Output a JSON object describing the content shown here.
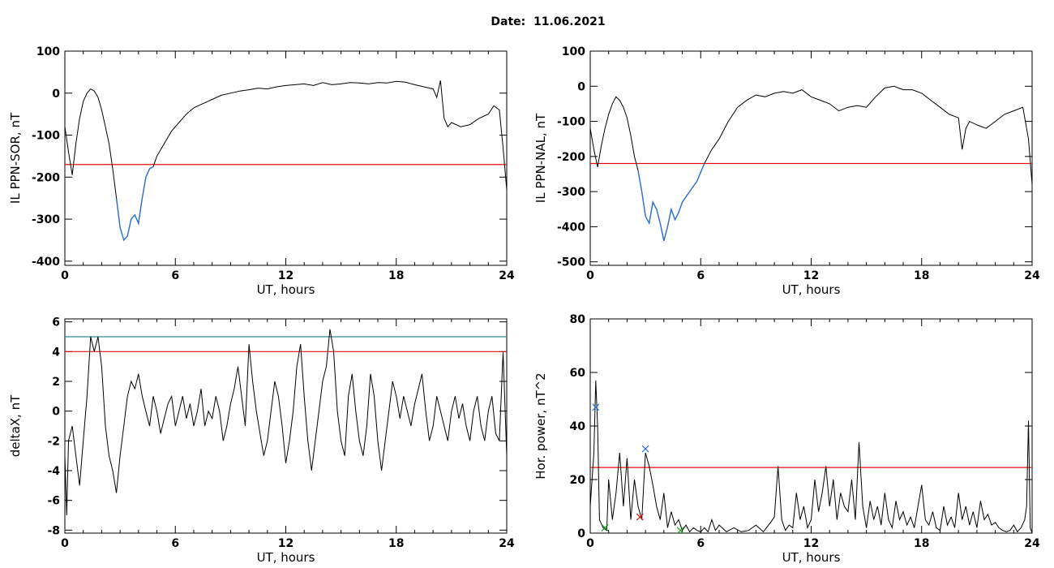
{
  "header": {
    "date_label": "Date:",
    "date_value": "11.06.2021"
  },
  "colors": {
    "trace": "#000000",
    "threshold": "#e01010",
    "highlight": "#2b6fd6",
    "teal": "#2a8a9a",
    "green": "#1ea01e"
  },
  "chart_data": [
    {
      "id": "ppn-sor",
      "type": "line",
      "xlabel": "UT, hours",
      "ylabel": "IL PPN-SOR, nT",
      "xlim": [
        0,
        24
      ],
      "ylim": [
        -410,
        100
      ],
      "xticks": [
        0,
        6,
        12,
        18,
        24
      ],
      "yticks": [
        100,
        0,
        -100,
        -200,
        -300,
        -400
      ],
      "threshold": -170,
      "series": [
        {
          "x": [
            0,
            0.2,
            0.4,
            0.6,
            0.8,
            1.0,
            1.2,
            1.4,
            1.6,
            1.8,
            2.0,
            2.2,
            2.4,
            2.6,
            2.8,
            3.0,
            3.2,
            3.4,
            3.6,
            3.8,
            4.0,
            4.2,
            4.4,
            4.6,
            4.8,
            5.0,
            5.4,
            5.8,
            6.2,
            6.6,
            7.0,
            7.5,
            8.0,
            8.5,
            9.0,
            9.5,
            10.0,
            10.5,
            11.0,
            11.5,
            12.0,
            12.5,
            13.0,
            13.5,
            14.0,
            14.5,
            15.0,
            15.5,
            16.0,
            16.5,
            17.0,
            17.5,
            18.0,
            18.5,
            19.0,
            19.5,
            20.0,
            20.2,
            20.4,
            20.6,
            20.8,
            21.0,
            21.5,
            22.0,
            22.5,
            23.0,
            23.3,
            23.6,
            23.8,
            24.0
          ],
          "y": [
            -80,
            -140,
            -195,
            -120,
            -60,
            -20,
            0,
            10,
            5,
            -10,
            -40,
            -80,
            -120,
            -180,
            -250,
            -320,
            -350,
            -340,
            -300,
            -290,
            -310,
            -250,
            -200,
            -180,
            -175,
            -150,
            -120,
            -90,
            -70,
            -50,
            -35,
            -25,
            -15,
            -5,
            0,
            5,
            8,
            12,
            10,
            15,
            18,
            20,
            22,
            18,
            25,
            20,
            22,
            25,
            24,
            22,
            25,
            24,
            28,
            26,
            20,
            15,
            10,
            -10,
            30,
            -60,
            -80,
            -70,
            -80,
            -75,
            -60,
            -50,
            -30,
            -40,
            -130,
            -230
          ]
        }
      ],
      "highlight": {
        "from": 2.7,
        "to": 4.8
      }
    },
    {
      "id": "ppn-nal",
      "type": "line",
      "xlabel": "UT, hours",
      "ylabel": "IL PPN-NAL, nT",
      "xlim": [
        0,
        24
      ],
      "ylim": [
        -510,
        100
      ],
      "xticks": [
        0,
        6,
        12,
        18,
        24
      ],
      "yticks": [
        100,
        0,
        -100,
        -200,
        -300,
        -400,
        -500
      ],
      "threshold": -220,
      "series": [
        {
          "x": [
            0,
            0.2,
            0.4,
            0.6,
            0.8,
            1.0,
            1.2,
            1.4,
            1.6,
            1.8,
            2.0,
            2.2,
            2.4,
            2.6,
            2.8,
            3.0,
            3.2,
            3.4,
            3.6,
            3.8,
            4.0,
            4.2,
            4.4,
            4.6,
            4.8,
            5.0,
            5.4,
            5.8,
            6.2,
            6.6,
            7.0,
            7.5,
            8.0,
            8.5,
            9.0,
            9.5,
            10.0,
            10.5,
            11.0,
            11.5,
            12.0,
            12.5,
            13.0,
            13.5,
            14.0,
            14.5,
            15.0,
            15.5,
            16.0,
            16.5,
            17.0,
            17.5,
            18.0,
            18.5,
            19.0,
            19.5,
            20.0,
            20.2,
            20.4,
            20.6,
            21.0,
            21.5,
            22.0,
            22.5,
            23.0,
            23.5,
            23.8,
            24.0
          ],
          "y": [
            -120,
            -180,
            -230,
            -170,
            -120,
            -80,
            -50,
            -30,
            -40,
            -60,
            -90,
            -140,
            -200,
            -240,
            -300,
            -370,
            -390,
            -330,
            -350,
            -390,
            -440,
            -400,
            -350,
            -380,
            -360,
            -330,
            -300,
            -270,
            -220,
            -180,
            -150,
            -100,
            -60,
            -40,
            -25,
            -30,
            -20,
            -15,
            -20,
            -10,
            -30,
            -40,
            -50,
            -70,
            -60,
            -55,
            -60,
            -30,
            -5,
            0,
            -10,
            -10,
            -20,
            -40,
            -60,
            -80,
            -90,
            -180,
            -120,
            -100,
            -110,
            -120,
            -100,
            -80,
            -70,
            -60,
            -150,
            -280
          ]
        }
      ],
      "highlight": {
        "from": 2.6,
        "to": 6.4
      }
    },
    {
      "id": "deltax",
      "type": "line",
      "xlabel": "UT, hours",
      "ylabel": "deltaX, nT",
      "xlim": [
        0,
        24
      ],
      "ylim": [
        -8.2,
        6.2
      ],
      "xticks": [
        0,
        6,
        12,
        18,
        24
      ],
      "yticks": [
        6,
        4,
        2,
        0,
        -2,
        -4,
        -6,
        -8
      ],
      "threshold": 4,
      "threshold2": 5,
      "series": [
        {
          "x": [
            0,
            0.1,
            0.2,
            0.4,
            0.6,
            0.8,
            1.0,
            1.2,
            1.4,
            1.6,
            1.8,
            2.0,
            2.2,
            2.4,
            2.6,
            2.8,
            3.0,
            3.2,
            3.4,
            3.6,
            3.8,
            4.0,
            4.2,
            4.4,
            4.6,
            4.8,
            5.0,
            5.2,
            5.4,
            5.6,
            5.8,
            6.0,
            6.2,
            6.4,
            6.6,
            6.8,
            7.0,
            7.2,
            7.4,
            7.6,
            7.8,
            8.0,
            8.2,
            8.4,
            8.6,
            8.8,
            9.0,
            9.2,
            9.4,
            9.6,
            9.8,
            10.0,
            10.2,
            10.4,
            10.6,
            10.8,
            11.0,
            11.2,
            11.4,
            11.6,
            11.8,
            12.0,
            12.2,
            12.4,
            12.6,
            12.8,
            13.0,
            13.2,
            13.4,
            13.6,
            13.8,
            14.0,
            14.2,
            14.4,
            14.6,
            14.8,
            15.0,
            15.2,
            15.4,
            15.6,
            15.8,
            16.0,
            16.2,
            16.4,
            16.6,
            16.8,
            17.0,
            17.2,
            17.4,
            17.6,
            17.8,
            18.0,
            18.2,
            18.4,
            18.6,
            18.8,
            19.0,
            19.2,
            19.4,
            19.6,
            19.8,
            20.0,
            20.2,
            20.4,
            20.6,
            20.8,
            21.0,
            21.2,
            21.4,
            21.6,
            21.8,
            22.0,
            22.2,
            22.4,
            22.6,
            22.8,
            23.0,
            23.2,
            23.4,
            23.6,
            23.8,
            24.0
          ],
          "y": [
            -3,
            -7,
            -2,
            -1,
            -3,
            -5,
            -2,
            1,
            5,
            4,
            5,
            3,
            -1,
            -3,
            -4,
            -5.5,
            -3,
            -1,
            1,
            2,
            1.5,
            2.5,
            1,
            0,
            -1,
            1,
            0,
            -1.5,
            -0.5,
            0.5,
            1,
            -1,
            0,
            1,
            -0.5,
            0.5,
            -1,
            0,
            1.5,
            -1,
            0,
            -0.5,
            1,
            0,
            -2,
            -1,
            0.5,
            1.5,
            3,
            1,
            -1,
            4.5,
            2,
            0,
            -1.5,
            -3,
            -2,
            0,
            2,
            1,
            -1,
            -3.5,
            -2,
            0,
            3,
            4.5,
            1,
            -2,
            -4,
            -2,
            0,
            2,
            3,
            5.5,
            4,
            0,
            -2,
            -3,
            1,
            2.5,
            0,
            -2,
            -3,
            -1,
            2.5,
            1,
            -2,
            -4,
            -2,
            0,
            2,
            1,
            -0.5,
            1,
            0,
            -1,
            0.5,
            1.5,
            2.5,
            0,
            -2,
            -1,
            1,
            0,
            -1,
            -2,
            0,
            1,
            -0.5,
            0.5,
            -1,
            -2,
            0,
            1,
            -1,
            -2,
            0,
            1,
            -1.5,
            -2,
            4,
            -3
          ]
        }
      ]
    },
    {
      "id": "hor-power",
      "type": "line",
      "xlabel": "UT, hours",
      "ylabel": "Hor. power, nT^2",
      "xlim": [
        0,
        24
      ],
      "ylim": [
        0,
        80
      ],
      "xticks": [
        0,
        6,
        12,
        18,
        24
      ],
      "yticks": [
        80,
        60,
        40,
        20,
        0
      ],
      "threshold": 24.5,
      "series": [
        {
          "x": [
            0,
            0.2,
            0.3,
            0.4,
            0.5,
            0.7,
            0.9,
            1.0,
            1.2,
            1.4,
            1.6,
            1.8,
            2.0,
            2.2,
            2.4,
            2.6,
            2.8,
            3.0,
            3.2,
            3.4,
            3.6,
            3.8,
            4.0,
            4.2,
            4.4,
            4.6,
            4.8,
            5.0,
            5.2,
            5.4,
            5.6,
            5.8,
            6.0,
            6.2,
            6.4,
            6.6,
            6.8,
            7.0,
            7.4,
            7.8,
            8.2,
            8.6,
            9.0,
            9.4,
            9.8,
            10.0,
            10.2,
            10.4,
            10.6,
            10.8,
            11.0,
            11.2,
            11.4,
            11.6,
            11.8,
            12.0,
            12.2,
            12.4,
            12.6,
            12.8,
            13.0,
            13.2,
            13.4,
            13.6,
            13.8,
            14.0,
            14.2,
            14.4,
            14.6,
            14.8,
            15.0,
            15.2,
            15.4,
            15.6,
            15.8,
            16.0,
            16.2,
            16.4,
            16.6,
            16.8,
            17.0,
            17.2,
            17.4,
            17.6,
            17.8,
            18.0,
            18.2,
            18.4,
            18.6,
            18.8,
            19.0,
            19.2,
            19.4,
            19.6,
            19.8,
            20.0,
            20.2,
            20.4,
            20.6,
            20.8,
            21.0,
            21.2,
            21.4,
            21.6,
            21.8,
            22.0,
            22.2,
            22.4,
            22.6,
            22.8,
            23.0,
            23.2,
            23.4,
            23.6,
            23.7,
            23.8,
            23.9,
            24.0
          ],
          "y": [
            10,
            30,
            57,
            40,
            5,
            2,
            1,
            20,
            5,
            15,
            30,
            10,
            28,
            5,
            20,
            10,
            5,
            30,
            25,
            18,
            10,
            5,
            15,
            2,
            8,
            3,
            5,
            1,
            3,
            0.5,
            2,
            1,
            0.5,
            2,
            0.5,
            5,
            1,
            3,
            0.5,
            2,
            0.5,
            1,
            3,
            0.5,
            4,
            6,
            25,
            5,
            1,
            3,
            2,
            15,
            5,
            10,
            2,
            5,
            20,
            8,
            15,
            25,
            10,
            20,
            5,
            15,
            10,
            8,
            20,
            5,
            34,
            10,
            2,
            12,
            5,
            10,
            3,
            15,
            5,
            2,
            12,
            5,
            8,
            3,
            6,
            2,
            10,
            18,
            5,
            3,
            8,
            2,
            1,
            10,
            3,
            6,
            2,
            15,
            5,
            10,
            3,
            8,
            2,
            12,
            5,
            7,
            3,
            4,
            2,
            1,
            0.5,
            1,
            3,
            0.5,
            2,
            5,
            10,
            42,
            2,
            0
          ]
        }
      ],
      "markers": [
        {
          "x": 0.3,
          "y": 47,
          "color": "#2b6fd6"
        },
        {
          "x": 3.0,
          "y": 31.5,
          "color": "#2b6fd6"
        },
        {
          "x": 0.8,
          "y": 2,
          "color": "#1ea01e"
        },
        {
          "x": 2.7,
          "y": 6,
          "color": "#e01010"
        },
        {
          "x": 4.9,
          "y": 1,
          "color": "#1ea01e"
        }
      ]
    }
  ]
}
